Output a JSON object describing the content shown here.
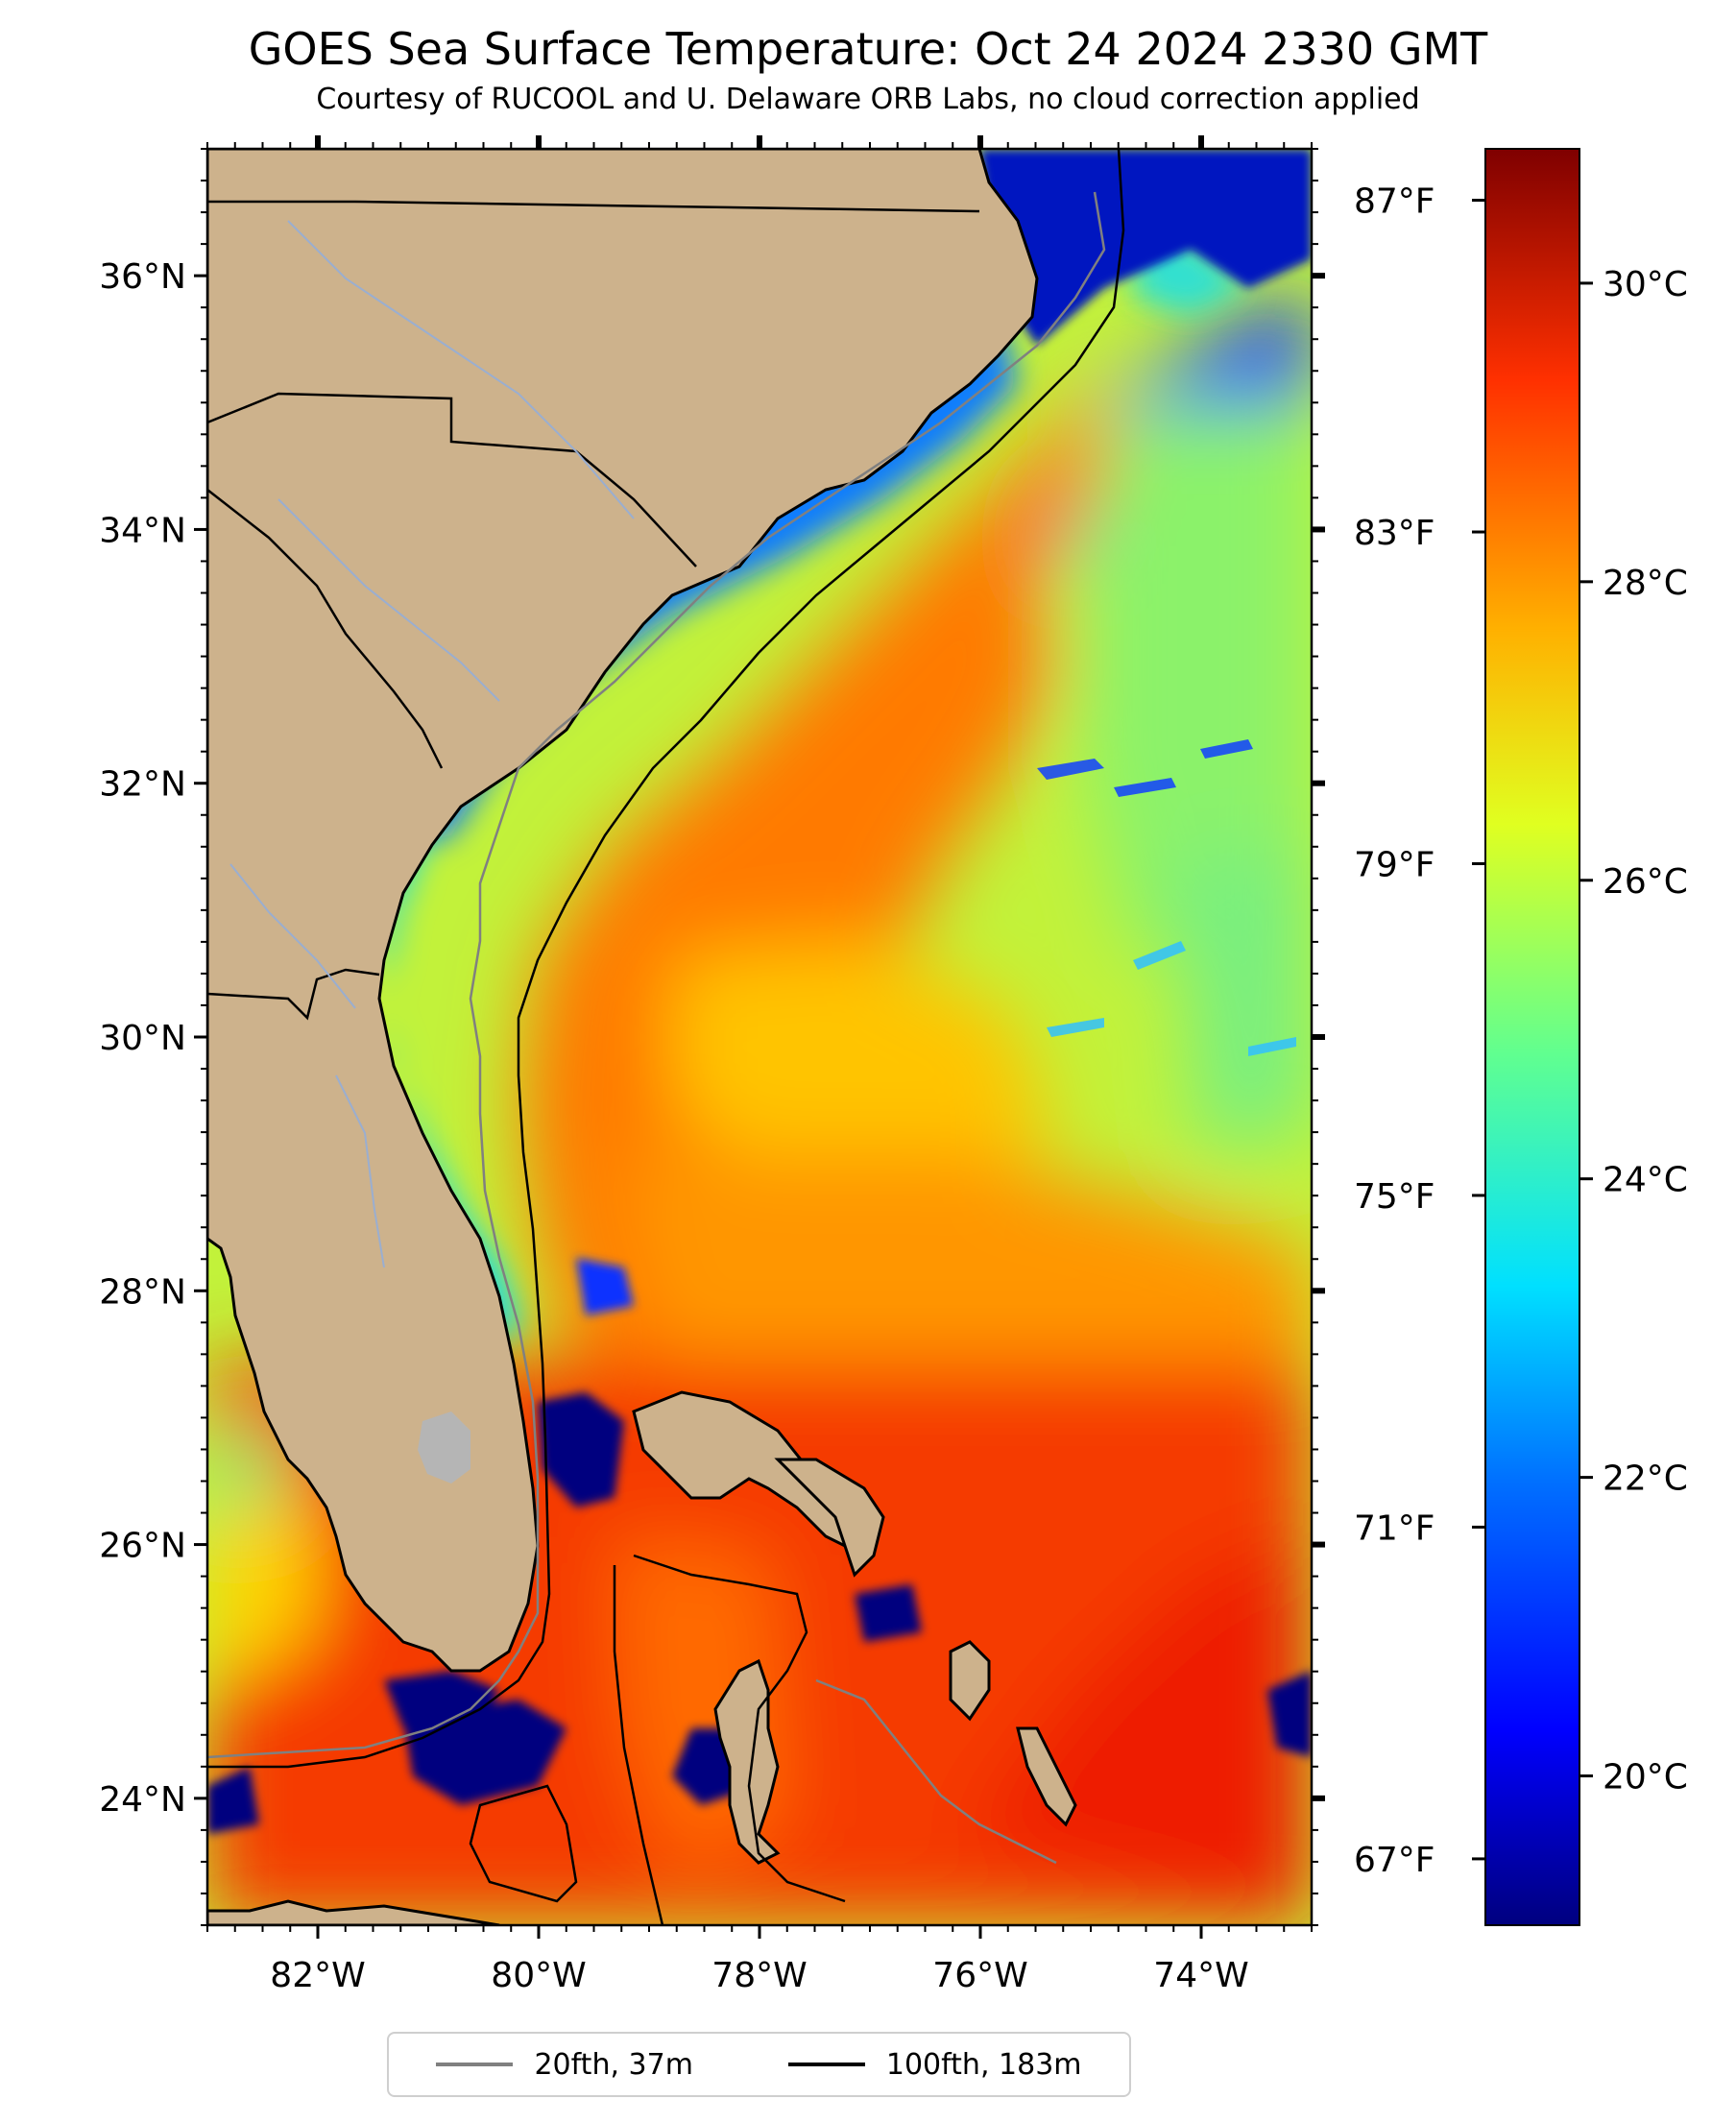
{
  "figure": {
    "title": "GOES Sea Surface Temperature: Oct 24 2024 2330 GMT",
    "subtitle": "Courtesy of RUCOOL and U. Delaware ORB Labs, no cloud correction applied"
  },
  "map": {
    "extent": {
      "lon": [
        -83.0,
        -73.0
      ],
      "lat": [
        23.0,
        37.0
      ]
    },
    "lat_ticks": [
      {
        "value": 24,
        "label": "24°N"
      },
      {
        "value": 26,
        "label": "26°N"
      },
      {
        "value": 28,
        "label": "28°N"
      },
      {
        "value": 30,
        "label": "30°N"
      },
      {
        "value": 32,
        "label": "32°N"
      },
      {
        "value": 34,
        "label": "34°N"
      },
      {
        "value": 36,
        "label": "36°N"
      }
    ],
    "lon_ticks": [
      {
        "value": -82,
        "label": "82°W"
      },
      {
        "value": -80,
        "label": "80°W"
      },
      {
        "value": -78,
        "label": "78°W"
      },
      {
        "value": -76,
        "label": "76°W"
      },
      {
        "value": -74,
        "label": "74°W"
      }
    ],
    "colors": {
      "land": "#cdb28c",
      "no_data": "#b5b5b5",
      "cloud_fill": "#00007f"
    }
  },
  "colorbar": {
    "celsius_range": [
      19.0,
      30.9
    ],
    "celsius_ticks": [
      {
        "value": 20,
        "label": "20°C"
      },
      {
        "value": 22,
        "label": "22°C"
      },
      {
        "value": 24,
        "label": "24°C"
      },
      {
        "value": 26,
        "label": "26°C"
      },
      {
        "value": 28,
        "label": "28°C"
      },
      {
        "value": 30,
        "label": "30°C"
      }
    ],
    "fahrenheit_ticks": [
      {
        "value": 67,
        "label": "67°F"
      },
      {
        "value": 71,
        "label": "71°F"
      },
      {
        "value": 75,
        "label": "75°F"
      },
      {
        "value": 79,
        "label": "79°F"
      },
      {
        "value": 83,
        "label": "83°F"
      },
      {
        "value": 87,
        "label": "87°F"
      }
    ],
    "colormap": "jet",
    "colormap_stops": [
      "#00007f",
      "#0000ff",
      "#0080ff",
      "#00ffff",
      "#80ff80",
      "#ffff00",
      "#ff8000",
      "#ff0000",
      "#7f0000"
    ]
  },
  "legend": {
    "items": [
      {
        "label": "20fth, 37m",
        "color": "#808080"
      },
      {
        "label": "100fth, 183m",
        "color": "#000000"
      }
    ]
  }
}
